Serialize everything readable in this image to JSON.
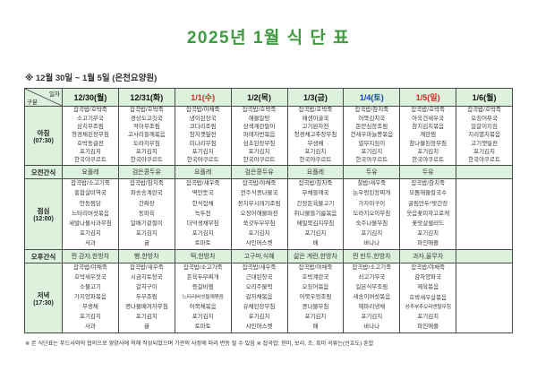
{
  "title": "2025년 1월 식 단 표",
  "subtitle": "※  12월  30일  ~  1월  5일  (은천요양원)",
  "corner": {
    "top": "일자",
    "bottom": "구분"
  },
  "row_labels": {
    "breakfast": [
      "아침",
      "(07:30)"
    ],
    "am_snack": [
      "오전간식"
    ],
    "lunch": [
      "점심",
      "(12:00)"
    ],
    "pm_snack": [
      "오후간식"
    ],
    "dinner": [
      "저녁",
      "(17:30)"
    ]
  },
  "colors": {
    "header_bg": "#dcf2dc",
    "title_green": "#3f9b3f",
    "date_default": "#111111",
    "date_red": "#e02020",
    "date_blue": "#1040c0",
    "border": "#4a4a4a"
  },
  "columns": [
    {
      "date": "12/30(월)",
      "date_color": "#111111",
      "breakfast": [
        "잡곡밥/호박죽",
        "소고기무국",
        "삼치무조림",
        "청경채된장무침",
        "호박동글전",
        "포기김치",
        "한국야쿠르트"
      ],
      "am_snack": "요플레",
      "lunch": [
        "잡곡밥/소고기죽",
        "홍합살미역국",
        "안동찜닭",
        "느타리버섯볶음",
        "세발나물사과무침",
        "포기김치",
        "사과"
      ],
      "pm_snack": "찐 감자,한방차",
      "dinner": [
        "잡곡밥/야채죽",
        "호박새우젓국",
        "소불고기",
        "가지양파볶음",
        "무생채",
        "포기김치",
        "사과"
      ]
    },
    {
      "date": "12/31(화)",
      "date_color": "#111111",
      "breakfast": [
        "잡곡밥/호박죽",
        "경상도고깃국",
        "적어무조림",
        "고사리들깨볶음",
        "도라지무침",
        "포기김치",
        "한국야쿠르트"
      ],
      "am_snack": "검은콩두유",
      "lunch": [
        "잡곡밥/참치죽",
        "파송송계란국",
        "간짜장",
        "동파육",
        "알배기겉절이",
        "포기김치",
        "귤"
      ],
      "pm_snack": "빵,한방차",
      "dinner": [
        "잡곡밥/새우죽",
        "시금치토장국",
        "갈치구이",
        "두부조림",
        "콩나물배겨자무침",
        "포기김치",
        "귤"
      ]
    },
    {
      "date": "1/1(수)",
      "date_color": "#e02020",
      "breakfast": [
        "잡곡밥/야채죽",
        "냉이된장국",
        "코다리조림",
        "참치깻잎전",
        "미나리무침",
        "포기김치",
        "한국야쿠르트"
      ],
      "am_snack": "요플레",
      "lunch": [
        "잡곡밥/새우죽",
        "떡만둣국",
        "한식잡채",
        "녹두전",
        "더덕생채무침",
        "포기김치",
        "토마토"
      ],
      "pm_snack": "떡,한방차",
      "dinner": [
        "잡곡밥/소고기죽",
        "돈육두부찌개",
        "등갈비찜",
        "느타리버섯들깨볶음",
        "어묵채볶음",
        "포기김치",
        "토마토"
      ]
    },
    {
      "date": "1/2(목)",
      "date_color": "#111111",
      "breakfast": [
        "잡곡밥/호박죽",
        "해물알탕",
        "삼색계란말이",
        "파래자반볶음",
        "섬초된장무침",
        "포기김치",
        "한국야쿠르트"
      ],
      "am_snack": "검은콩두유",
      "lunch": [
        "잡곡밥/야채죽",
        "전주식콩나물국",
        "꽁치무시래기조림",
        "오징어해물파전",
        "쑥갓두부무침",
        "포기김치",
        "샤인머스켓"
      ],
      "pm_snack": "고구마,식혜",
      "dinner": [
        "잡곡밥/새우죽",
        "근대된장국",
        "오리주물럭",
        "감자채볶음",
        "유채된장무침",
        "포기김치",
        "샤인머스켓"
      ]
    },
    {
      "date": "1/3(금)",
      "date_color": "#111111",
      "breakfast": [
        "잡곡밥/호박죽",
        "매생이굴국",
        "고기완자전",
        "청경채고추장무침",
        "무생채",
        "포기김치",
        "한국야쿠르트"
      ],
      "am_snack": "요플레",
      "lunch": [
        "잡곡밥/참치죽",
        "무채들깨국",
        "간장돈육불고기",
        "취나물들기름볶음",
        "메밀묵김치무침",
        "포기김치",
        "배"
      ],
      "pm_snack": "삶은 계란,한방차",
      "dinner": [
        "잡곡밥/야채죽",
        "호박계란국",
        "오징어볶음",
        "어묵우엉조림",
        "콩나물무침",
        "포기김치",
        "배"
      ]
    },
    {
      "date": "1/4(토)",
      "date_color": "#1040c0",
      "breakfast": [
        "잡곡밥/참치죽",
        "어묵김치국",
        "돈안심장조림",
        "건새우마늘쫑볶음",
        "열무지짐이",
        "포기김치",
        "한국야쿠르트"
      ],
      "am_snack": "두유",
      "lunch": [
        "찰밥/새우죽",
        "논우렁된장찌개",
        "가자미구이",
        "도라지오이무침",
        "숙주나물무침",
        "포기김치",
        "바나나"
      ],
      "pm_snack": "찐 만두,한방차",
      "dinner": [
        "잡곡밥/소고기죽",
        "쇠고기무국",
        "일본식무조림",
        "새송이버섯볶음",
        "해파리냉채",
        "포기김치",
        "바나나"
      ]
    },
    {
      "date": "1/5(일)",
      "date_color": "#e02020",
      "breakfast": [
        "잡곡밥/호박죽",
        "아욱건새우국",
        "참치김치볶음",
        "계란찜",
        "참나물된장무침",
        "포기김치",
        "한국야쿠르트"
      ],
      "am_snack": "두유",
      "lunch": [
        "잡곡밥/참치죽",
        "모둠해물칼국수",
        "굴림만두*맛간장",
        "웃음꽃피자고로케",
        "꽃맛살샐러드",
        "포기김치",
        "파인애플"
      ],
      "pm_snack": "과자,율무차",
      "dinner": [
        "잡곡밥/야채죽",
        "감자양파국",
        "제육볶음",
        "호박새우살볶음",
        "상추부추오리엔탈무침",
        "포기김치",
        "파인애플"
      ]
    },
    {
      "date": "1/6(월)",
      "date_color": "#111111",
      "breakfast": [
        "잡곡밥/호박죽",
        "오징어무국",
        "얼갈이지짐",
        "지리멸치볶음",
        "고기깻잎전",
        "포기김치",
        "한국야쿠르트"
      ],
      "am_snack": "",
      "lunch": [],
      "pm_snack": "",
      "dinner": []
    }
  ],
  "footnote": "※ 본 식단표는 푸드사와의 협의으로 영양사에 의해 작성되었으며 기관의 사정에 따라 변동 될 수 있음   ※ 잡곡밥: 현미, 보리, 조, 흑미 곡류는(선호도) 혼합"
}
